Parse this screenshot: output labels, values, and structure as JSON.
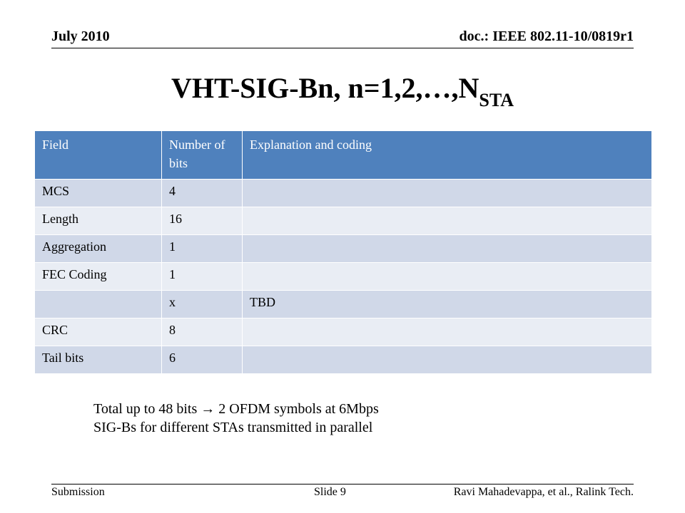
{
  "header": {
    "date": "July 2010",
    "doc_id": "doc.: IEEE 802.11-10/0819r1"
  },
  "slide": {
    "title_main": "VHT-SIG-Bn, n=1,2,…,N",
    "title_sub": "STA"
  },
  "table": {
    "headers": [
      "Field",
      "Number of bits",
      "Explanation and coding"
    ],
    "rows": [
      {
        "field": "MCS",
        "bits": "4",
        "explanation": ""
      },
      {
        "field": "Length",
        "bits": "16",
        "explanation": ""
      },
      {
        "field": "Aggregation",
        "bits": "1",
        "explanation": ""
      },
      {
        "field": "FEC Coding",
        "bits": "1",
        "explanation": ""
      },
      {
        "field": "",
        "bits": "x",
        "explanation": "TBD"
      },
      {
        "field": "CRC",
        "bits": "8",
        "explanation": ""
      },
      {
        "field": "Tail bits",
        "bits": "6",
        "explanation": ""
      }
    ]
  },
  "notes": {
    "line1": "Total up to 48 bits → 2 OFDM symbols at 6Mbps",
    "line2": "SIG-Bs for different STAs transmitted in parallel"
  },
  "footer": {
    "left": "Submission",
    "center": "Slide 9",
    "right": "Ravi Mahadevappa, et al., Ralink Tech."
  },
  "colors": {
    "header_fill": "#4f81bd",
    "row_odd": "#d0d8e8",
    "row_even": "#e9edf4"
  }
}
